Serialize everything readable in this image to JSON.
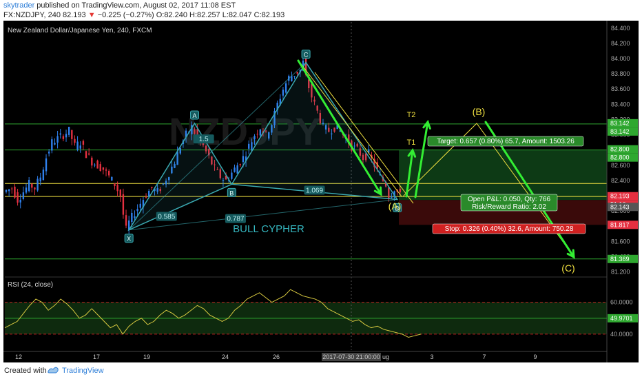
{
  "header": {
    "publisher": "skytrader",
    "published_text": " published on TradingView.com, August 02, 2017 11:08 EST",
    "symbol": "FX:NZDJPY, 240",
    "last": "82.193",
    "change": "−0.225 (−0.27%)",
    "open": "O:82.240",
    "high": "H:82.257",
    "low": "L:82.047",
    "close": "C:82.193"
  },
  "footer": {
    "created_with": "Created with",
    "brand": "TradingView"
  },
  "colors": {
    "background": "#000000",
    "up_candle": "#2f80ed",
    "down_candle": "#e53040",
    "pattern": "#3aa8b0",
    "arrow": "#33ee33",
    "yellow": "#f0e040",
    "green_line": "#2fa830",
    "target_zone": "#0d3a15",
    "stop_zone": "#3a0a0a",
    "rsi_line": "#d8c940",
    "rsi_zone": "#0e2a0e"
  },
  "chart_data": [
    {
      "type": "candlestick",
      "title": "New Zealand Dollar/Japanese Yen, 240, FXCM",
      "ylim": [
        81.15,
        84.48
      ],
      "y_ticks": [
        "84.400",
        "84.200",
        "84.000",
        "83.800",
        "83.600",
        "83.400",
        "83.200",
        "83.000",
        "82.800",
        "82.600",
        "82.400",
        "82.200",
        "82.000",
        "81.800",
        "81.600",
        "81.400",
        "81.200"
      ],
      "x_tick_labels": [
        "12",
        "17",
        "19",
        "24",
        "26",
        "2017-07-30 21:00:00",
        "ug",
        "3",
        "7",
        "9"
      ],
      "path_points": [
        [
          0,
          82.25
        ],
        [
          3,
          82.3
        ],
        [
          5,
          82.15
        ],
        [
          7,
          82.25
        ],
        [
          9,
          82.35
        ],
        [
          11,
          82.3
        ],
        [
          13,
          82.45
        ],
        [
          15,
          82.7
        ],
        [
          17,
          82.9
        ],
        [
          19,
          82.95
        ],
        [
          21,
          83.0
        ],
        [
          23,
          83.05
        ],
        [
          25,
          82.85
        ],
        [
          27,
          82.9
        ],
        [
          29,
          82.75
        ],
        [
          31,
          82.65
        ],
        [
          33,
          82.6
        ],
        [
          35,
          82.55
        ],
        [
          37,
          82.45
        ],
        [
          39,
          82.35
        ],
        [
          41,
          82.2
        ],
        [
          42,
          81.95
        ],
        [
          43,
          81.75
        ],
        [
          44,
          81.85
        ],
        [
          46,
          81.98
        ],
        [
          48,
          82.1
        ],
        [
          50,
          82.22
        ],
        [
          52,
          82.3
        ],
        [
          54,
          82.25
        ],
        [
          56,
          82.35
        ],
        [
          58,
          82.5
        ],
        [
          60,
          82.65
        ],
        [
          62,
          82.85
        ],
        [
          64,
          83.0
        ],
        [
          66,
          83.1
        ],
        [
          68,
          82.95
        ],
        [
          70,
          82.85
        ],
        [
          72,
          82.7
        ],
        [
          74,
          82.55
        ],
        [
          76,
          82.45
        ],
        [
          78,
          82.4
        ],
        [
          80,
          82.5
        ],
        [
          82,
          82.6
        ],
        [
          84,
          82.7
        ],
        [
          86,
          82.85
        ],
        [
          88,
          83.0
        ],
        [
          90,
          83.1
        ],
        [
          92,
          83.0
        ],
        [
          94,
          83.15
        ],
        [
          96,
          83.4
        ],
        [
          98,
          83.6
        ],
        [
          100,
          83.75
        ],
        [
          102,
          83.8
        ],
        [
          104,
          83.85
        ],
        [
          105,
          83.95
        ],
        [
          106,
          83.75
        ],
        [
          108,
          83.5
        ],
        [
          110,
          83.3
        ],
        [
          112,
          83.1
        ],
        [
          114,
          83.05
        ],
        [
          116,
          83.1
        ],
        [
          118,
          83.05
        ],
        [
          120,
          82.95
        ],
        [
          122,
          82.85
        ],
        [
          124,
          82.8
        ],
        [
          126,
          82.7
        ],
        [
          128,
          82.75
        ],
        [
          130,
          82.6
        ],
        [
          132,
          82.45
        ],
        [
          134,
          82.35
        ],
        [
          135,
          82.2
        ],
        [
          136,
          82.23
        ],
        [
          137,
          82.3
        ],
        [
          138,
          82.25
        ],
        [
          139,
          82.19
        ]
      ],
      "pattern": {
        "name": "BULL CYPHER",
        "points": [
          {
            "label": "X",
            "price": 81.75
          },
          {
            "label": "A",
            "price": 83.15
          },
          {
            "label": "B",
            "price": 82.35
          },
          {
            "label": "C",
            "price": 83.95
          },
          {
            "label": "D",
            "price": 82.15
          }
        ],
        "ratios": [
          "1.5",
          "0.585",
          "1.069",
          "0.787"
        ]
      },
      "projection": {
        "labels": [
          "T1",
          "T2",
          "(A)",
          "(B)",
          "(C)"
        ],
        "a_price": 82.19,
        "b_price": 83.15,
        "c_price": 81.4
      },
      "levels": {
        "green": [
          "83.142",
          "82.800",
          "81.369"
        ],
        "yellow": [
          82.36,
          82.19
        ]
      },
      "position": {
        "target_label": "Target: 0.657 (0.80%) 65.7, Amount: 1503.26",
        "pnl_label": "Open P&L: 0.050, Qty: 766",
        "rr_label": "Risk/Reward Ratio: 2.02",
        "stop_label": "Stop: 0.326 (0.40%) 32.6, Amount: 750.28",
        "entry": 82.143,
        "target": 82.8,
        "stop": 81.817
      },
      "price_tags": [
        {
          "text": "83.142",
          "color": "#2fa830"
        },
        {
          "text": "83.142",
          "color": "#2fa830"
        },
        {
          "text": "82.800",
          "color": "#2fa830"
        },
        {
          "text": "82.800",
          "color": "#2fa830"
        },
        {
          "text": "82.193",
          "color": "#e53040"
        },
        {
          "text": "51:16",
          "color": "#e53040"
        },
        {
          "text": "82.143",
          "color": "#555555"
        },
        {
          "text": "81.817",
          "color": "#e53040"
        },
        {
          "text": "81.369",
          "color": "#2fa830"
        }
      ]
    },
    {
      "type": "line",
      "title": "RSI (24, close)",
      "ylim": [
        30,
        75
      ],
      "levels": [
        "60.0000",
        "49.9701",
        "40.0000"
      ],
      "values": [
        44,
        46,
        48,
        53,
        58,
        62,
        60,
        55,
        58,
        62,
        59,
        55,
        50,
        52,
        56,
        52,
        48,
        44,
        46,
        40,
        45,
        48,
        50,
        46,
        48,
        52,
        55,
        53,
        50,
        52,
        55,
        58,
        56,
        52,
        50,
        48,
        50,
        55,
        58,
        62,
        64,
        66,
        63,
        60,
        62,
        64,
        68,
        66,
        64,
        63,
        62,
        60,
        56,
        54,
        52,
        50,
        48,
        49,
        46,
        44,
        45,
        43,
        42,
        41,
        40,
        38,
        39,
        40
      ]
    }
  ]
}
